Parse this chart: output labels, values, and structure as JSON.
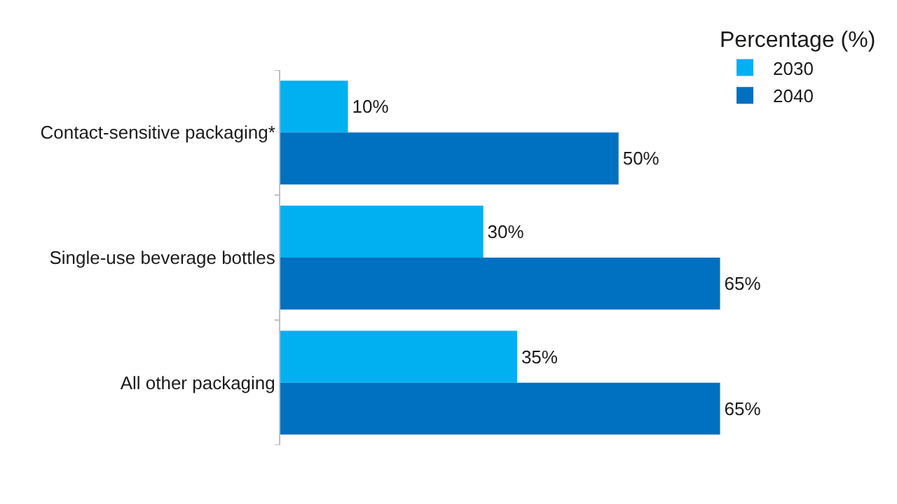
{
  "chart_data": {
    "type": "bar",
    "orientation": "horizontal",
    "legend_title": "Percentage (%)",
    "legend": "right",
    "categories": [
      "Contact-sensitive packaging*",
      "Single-use beverage bottles",
      "All other packaging"
    ],
    "series": [
      {
        "name": "2030",
        "color": "#00b0f0",
        "values": [
          10,
          30,
          35
        ],
        "value_labels": [
          "10%",
          "30%",
          "35%"
        ]
      },
      {
        "name": "2040",
        "color": "#0070c0",
        "values": [
          50,
          65,
          65
        ],
        "value_labels": [
          "50%",
          "65%",
          "65%"
        ]
      }
    ]
  }
}
